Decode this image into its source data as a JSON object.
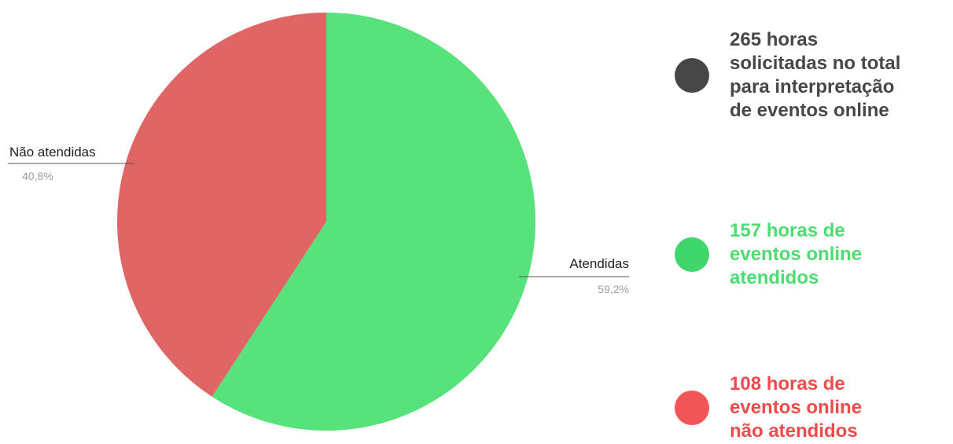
{
  "chart_data": {
    "type": "pie",
    "title": "",
    "slices": [
      {
        "label": "Atendidas",
        "value": 59.2,
        "display": "59,2%",
        "color": "#57e27b"
      },
      {
        "label": "Não atendidas",
        "value": 40.8,
        "display": "40,8%",
        "color": "#e06666"
      }
    ],
    "start": "12 o'clock",
    "direction": "clockwise"
  },
  "legend": {
    "items": [
      {
        "text": "265 horas\nsolicitadas no total\npara interpretação\nde eventos online",
        "dot_color": "#474747",
        "text_color": "#474747"
      },
      {
        "text": "157 horas de\neventos online\natendidos",
        "dot_color": "#3fd66b",
        "text_color": "#4cdc6f"
      },
      {
        "text": "108 horas de\neventos online\nnão atendidos",
        "dot_color": "#f15555",
        "text_color": "#ee4b4b"
      }
    ]
  }
}
